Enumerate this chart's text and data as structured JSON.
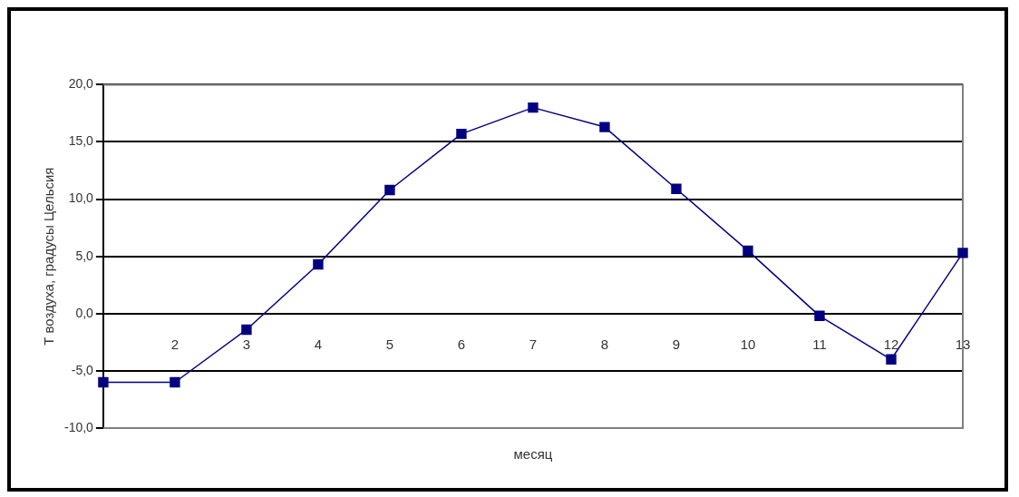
{
  "chart_data": {
    "type": "line",
    "xlabel": "месяц",
    "ylabel": "Т воздуха, градусы Цельсия",
    "categories": [
      null,
      "2",
      "3",
      "4",
      "5",
      "6",
      "7",
      "8",
      "9",
      "10",
      "11",
      "12",
      "13"
    ],
    "series": [
      {
        "color": "#000080",
        "values": [
          -6,
          -6,
          -1.4,
          4.3,
          10.8,
          15.7,
          18,
          16.3,
          10.9,
          5.5,
          -0.2,
          -4,
          5.3
        ]
      }
    ],
    "ylim": [
      -10,
      20
    ],
    "yticks": [
      {
        "value": -10,
        "label": "-10,0"
      },
      {
        "value": -5,
        "label": "-5,0"
      },
      {
        "value": 0,
        "label": "0,0"
      },
      {
        "value": 5,
        "label": "5,0"
      },
      {
        "value": 10,
        "label": "10,0"
      },
      {
        "value": 15,
        "label": "15,0"
      },
      {
        "value": 20,
        "label": "20,0"
      }
    ],
    "grid": "y",
    "legend": false,
    "marker": "square",
    "line_style": "solid"
  }
}
